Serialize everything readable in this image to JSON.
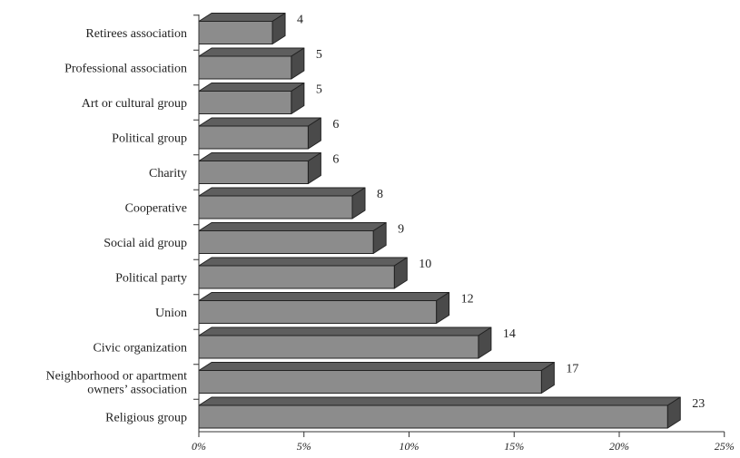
{
  "chart_data": {
    "type": "bar",
    "orientation": "horizontal",
    "title": "",
    "xlabel": "",
    "ylabel": "",
    "categories": [
      "Retirees association",
      "Professional association",
      "Art or cultural group",
      "Political group",
      "Charity",
      "Cooperative",
      "Social aid group",
      "Political party",
      "Union",
      "Civic organization",
      [
        "Neighborhood or apartment",
        "owners’ association"
      ],
      "Religious group"
    ],
    "values": [
      4,
      5,
      5,
      6,
      6,
      8,
      9,
      10,
      12,
      14,
      17,
      23
    ],
    "value_labels": [
      "4",
      "5",
      "5",
      "6",
      "6",
      "8",
      "9",
      "10",
      "12",
      "14",
      "17",
      "23"
    ],
    "bar_lengths_percent": [
      3.5,
      4.4,
      4.4,
      5.2,
      5.2,
      7.3,
      8.3,
      9.3,
      11.3,
      13.3,
      16.3,
      22.3
    ],
    "xlim": [
      0,
      25
    ],
    "x_ticks": [
      0,
      5,
      10,
      15,
      20,
      25
    ],
    "x_tick_labels": [
      "0%",
      "5%",
      "10%",
      "15%",
      "20%",
      "25%"
    ],
    "grid": false,
    "legend": "none",
    "colors": {
      "bar_front": "#8c8c8c",
      "bar_top": "#5e5e5e",
      "bar_side": "#4a4a4a",
      "outline": "#222222"
    }
  }
}
